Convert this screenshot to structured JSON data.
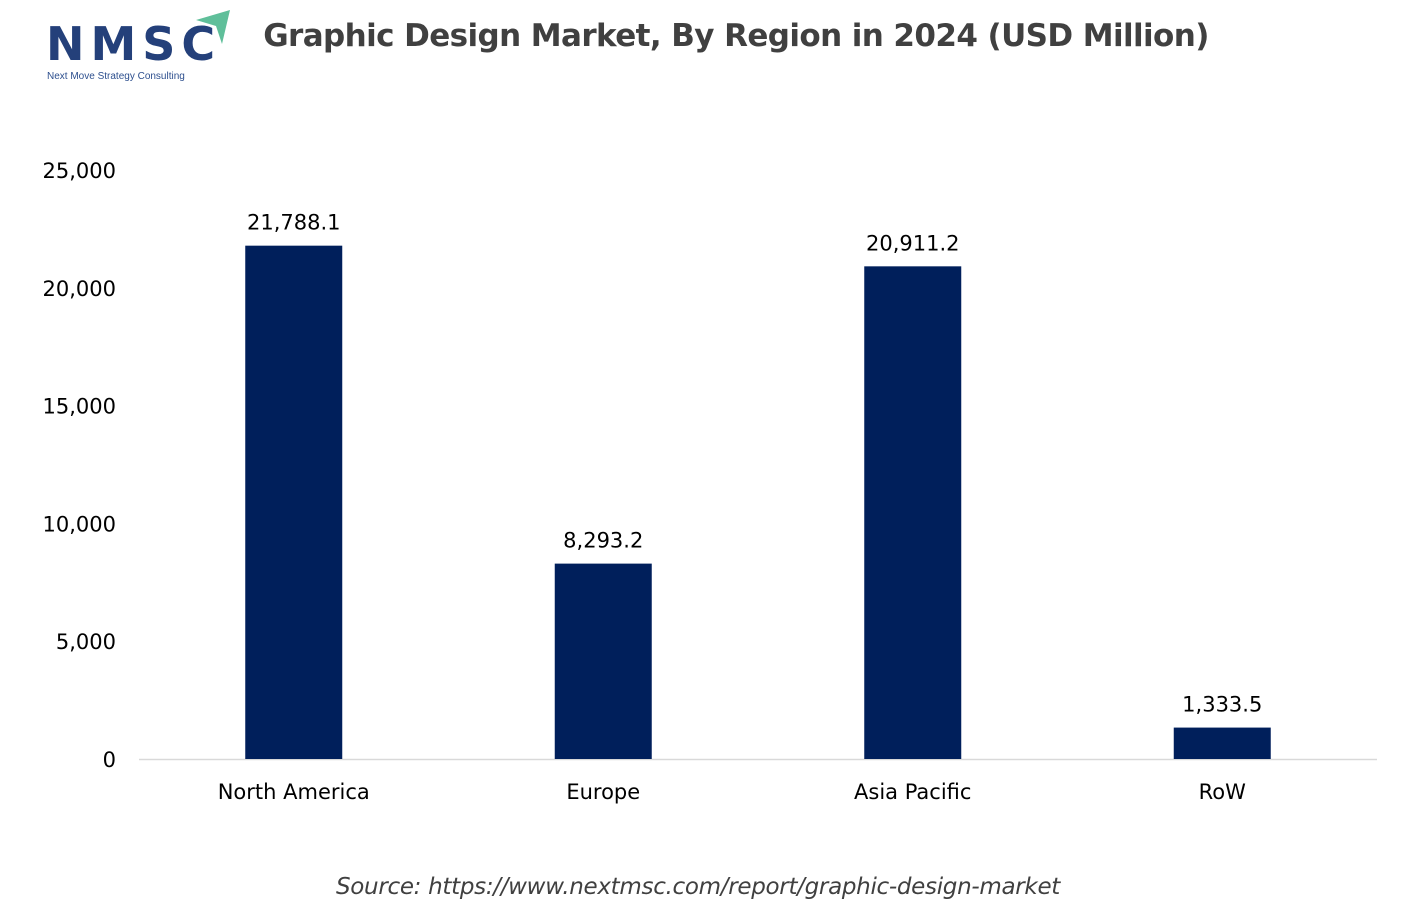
{
  "logo": {
    "name": "NMSC",
    "tagline": "Next Move Strategy Consulting"
  },
  "source": "Source: https://www.nextmsc.com/report/graphic-design-market",
  "colors": {
    "bar": "#001f5b",
    "axis": "#d9d9d9",
    "logo_blue": "#24407a",
    "logo_arrow": "#5fbf9a"
  },
  "chart_data": {
    "type": "bar",
    "title": "Graphic Design Market, By Region in 2024 (USD Million)",
    "categories": [
      "North America",
      "Europe",
      "Asia Pacific",
      "RoW"
    ],
    "values": [
      21788.1,
      8293.2,
      20911.2,
      1333.5
    ],
    "data_labels": [
      "21,788.1",
      "8,293.2",
      "20,911.2",
      "1,333.5"
    ],
    "xlabel": "",
    "ylabel": "",
    "ylim": [
      0,
      25000
    ],
    "yticks": [
      0,
      5000,
      10000,
      15000,
      20000,
      25000
    ],
    "ytick_labels": [
      "0",
      "5,000",
      "10,000",
      "15,000",
      "20,000",
      "25,000"
    ],
    "grid": false,
    "legend": "none"
  }
}
